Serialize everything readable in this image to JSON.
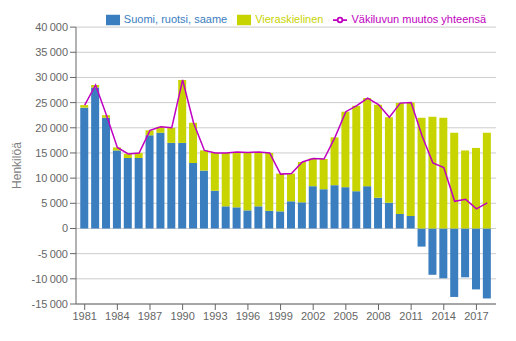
{
  "chart_data": {
    "type": "bar",
    "stacked": true,
    "grid": true,
    "legend": "upper right",
    "y_label": "Henkilöä",
    "x": [
      1981,
      1982,
      1983,
      1984,
      1985,
      1986,
      1987,
      1988,
      1989,
      1990,
      1991,
      1992,
      1993,
      1994,
      1995,
      1996,
      1997,
      1998,
      1999,
      2000,
      2001,
      2002,
      2003,
      2004,
      2005,
      2006,
      2007,
      2008,
      2009,
      2010,
      2011,
      2012,
      2013,
      2014,
      2015,
      2016,
      2017,
      2018
    ],
    "series": [
      {
        "name": "Suomi, ruotsi, saame",
        "type": "bar",
        "color": "#3a7ebf",
        "values": [
          24000,
          28000,
          22000,
          15500,
          14000,
          14000,
          18500,
          19000,
          17000,
          17000,
          13000,
          11500,
          7500,
          4400,
          4200,
          3600,
          4400,
          3500,
          3400,
          5400,
          5200,
          8400,
          7800,
          8600,
          8200,
          7400,
          8400,
          6100,
          5100,
          2900,
          2500,
          -3600,
          -9200,
          -9900,
          -13600,
          -9700,
          -12100,
          -13900
        ]
      },
      {
        "name": "Vieraskielinen",
        "type": "bar",
        "color": "#c8d400",
        "values": [
          500,
          500,
          500,
          600,
          800,
          1000,
          1000,
          1200,
          3000,
          12500,
          8000,
          4000,
          7500,
          10600,
          11000,
          11500,
          10800,
          11500,
          7500,
          5500,
          8000,
          5500,
          6000,
          9500,
          15000,
          17000,
          17500,
          18500,
          17000,
          22000,
          22500,
          22000,
          22200,
          22000,
          19000,
          15500,
          16000,
          19000
        ]
      },
      {
        "name": "Väkiluvun muutos yhteensä",
        "type": "line",
        "color": "#c000c0",
        "values": [
          24500,
          28500,
          22500,
          16100,
          14800,
          15000,
          19500,
          20200,
          20000,
          29500,
          21000,
          15500,
          15000,
          15000,
          15200,
          15100,
          15200,
          15000,
          10800,
          10900,
          13200,
          13900,
          13800,
          18100,
          23200,
          24400,
          25900,
          24600,
          22100,
          24900,
          25000,
          18400,
          13000,
          12100,
          5400,
          5800,
          3900,
          5100
        ]
      }
    ],
    "xlim": [
      1980.2,
      2018.8
    ],
    "xticks": [
      1981,
      1984,
      1987,
      1990,
      1993,
      1996,
      1999,
      2002,
      2005,
      2008,
      2011,
      2014,
      2017
    ],
    "ylim": [
      -15000,
      40000
    ],
    "yticks": [
      {
        "value": -15000,
        "label": "-15 000"
      },
      {
        "value": -10000,
        "label": "-10 000"
      },
      {
        "value": -5000,
        "label": "-5 000"
      },
      0,
      {
        "value": 5000,
        "label": "5 000"
      },
      {
        "value": 10000,
        "label": "10 000"
      },
      {
        "value": 15000,
        "label": "15 000"
      },
      {
        "value": 20000,
        "label": "20 000"
      },
      {
        "value": 25000,
        "label": "25 000"
      },
      {
        "value": 30000,
        "label": "30 000"
      },
      {
        "value": 35000,
        "label": "35 000"
      },
      {
        "value": 40000,
        "label": "40 000"
      }
    ]
  }
}
